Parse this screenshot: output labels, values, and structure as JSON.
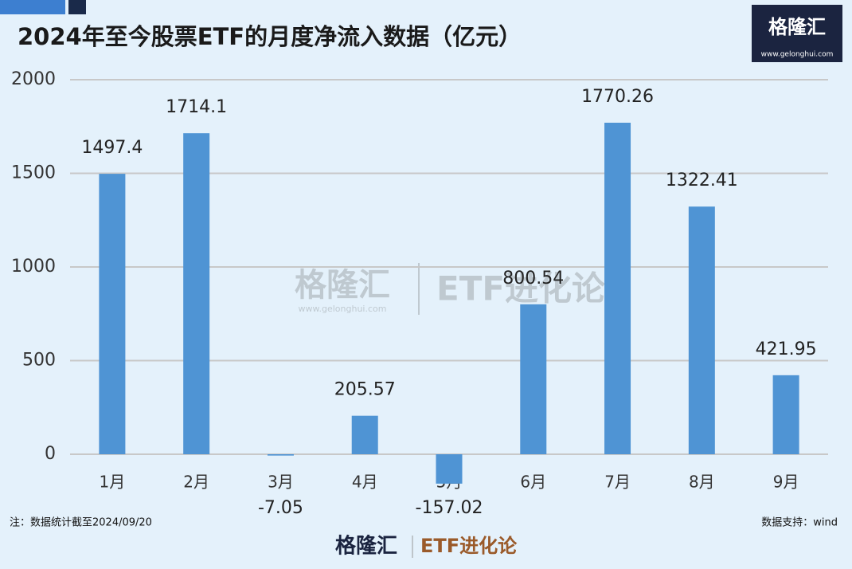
{
  "chart_data": {
    "type": "bar",
    "title": "2024年至今股票ETF的月度净流入数据（亿元）",
    "categories": [
      "1月",
      "2月",
      "3月",
      "4月",
      "5月",
      "6月",
      "7月",
      "8月",
      "9月"
    ],
    "values": [
      1497.4,
      1714.1,
      -7.05,
      205.57,
      -157.02,
      800.54,
      1770.26,
      1322.41,
      421.95
    ],
    "color": "#4f94d4",
    "ylim": [
      -200,
      2000
    ],
    "yticks": [
      0,
      500,
      1000,
      1500,
      2000
    ],
    "grid": true,
    "note": "注：数据统计截至2024/09/20",
    "source": "数据支持：wind"
  },
  "branding": {
    "logo": "格隆汇",
    "url": "www.gelonghui.com",
    "column": "ETF进化论"
  }
}
